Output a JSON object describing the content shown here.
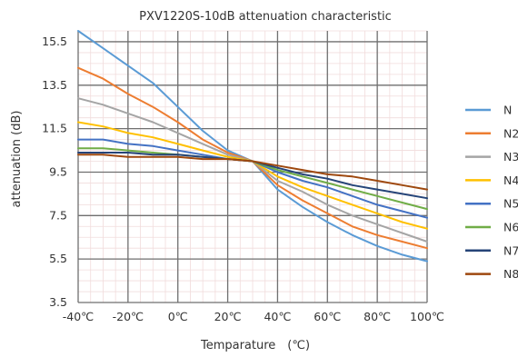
{
  "chart_data": {
    "type": "line",
    "title": "PXV1220S-10dB attenuation characteristic",
    "xlabel": "Temparature　(℃)",
    "ylabel": "attenuation (dB)",
    "xlim": [
      -40,
      100
    ],
    "ylim": [
      3.5,
      16
    ],
    "x_ticks": [
      -40,
      -20,
      0,
      20,
      40,
      60,
      80,
      100
    ],
    "x_tick_labels": [
      "-40℃",
      "-20℃",
      "0℃",
      "20℃",
      "40℃",
      "60℃",
      "80℃",
      "100℃"
    ],
    "y_ticks": [
      3.5,
      5.5,
      7.5,
      9.5,
      11.5,
      13.5,
      15.5
    ],
    "y_tick_labels": [
      "3.5",
      "5.5",
      "7.5",
      "9.5",
      "11.5",
      "13.5",
      "15.5"
    ],
    "grid": true,
    "legend_position": "right",
    "x": [
      -40,
      -30,
      -20,
      -10,
      0,
      10,
      20,
      30,
      40,
      50,
      60,
      70,
      80,
      90,
      100
    ],
    "series": [
      {
        "name": "N",
        "color": "#5b9bd5",
        "values": [
          16.0,
          15.2,
          14.4,
          13.6,
          12.5,
          11.4,
          10.5,
          10.0,
          8.7,
          7.9,
          7.2,
          6.6,
          6.1,
          5.7,
          5.4
        ]
      },
      {
        "name": "N2",
        "color": "#ed7d31",
        "values": [
          14.3,
          13.8,
          13.1,
          12.5,
          11.8,
          11.0,
          10.4,
          10.0,
          8.9,
          8.2,
          7.6,
          7.0,
          6.6,
          6.3,
          6.0
        ]
      },
      {
        "name": "N3",
        "color": "#a5a5a5",
        "values": [
          12.9,
          12.6,
          12.2,
          11.8,
          11.3,
          10.8,
          10.3,
          10.0,
          9.1,
          8.6,
          8.0,
          7.5,
          7.1,
          6.7,
          6.3
        ]
      },
      {
        "name": "N4",
        "color": "#ffc000",
        "values": [
          11.8,
          11.6,
          11.3,
          11.1,
          10.8,
          10.5,
          10.2,
          10.0,
          9.3,
          8.8,
          8.4,
          8.0,
          7.6,
          7.2,
          6.9
        ]
      },
      {
        "name": "N5",
        "color": "#4472c4",
        "values": [
          11.0,
          11.0,
          10.8,
          10.7,
          10.5,
          10.3,
          10.1,
          10.0,
          9.5,
          9.1,
          8.8,
          8.4,
          8.0,
          7.7,
          7.4
        ]
      },
      {
        "name": "N6",
        "color": "#70ad47",
        "values": [
          10.6,
          10.6,
          10.5,
          10.4,
          10.3,
          10.2,
          10.1,
          10.0,
          9.6,
          9.3,
          9.0,
          8.7,
          8.4,
          8.1,
          7.8
        ]
      },
      {
        "name": "N7",
        "color": "#264478",
        "values": [
          10.4,
          10.4,
          10.4,
          10.3,
          10.3,
          10.2,
          10.1,
          10.0,
          9.7,
          9.4,
          9.2,
          8.9,
          8.7,
          8.5,
          8.3
        ]
      },
      {
        "name": "N8",
        "color": "#9e480e",
        "values": [
          10.3,
          10.3,
          10.2,
          10.2,
          10.2,
          10.1,
          10.1,
          10.0,
          9.8,
          9.6,
          9.4,
          9.3,
          9.1,
          8.9,
          8.7
        ]
      }
    ]
  }
}
